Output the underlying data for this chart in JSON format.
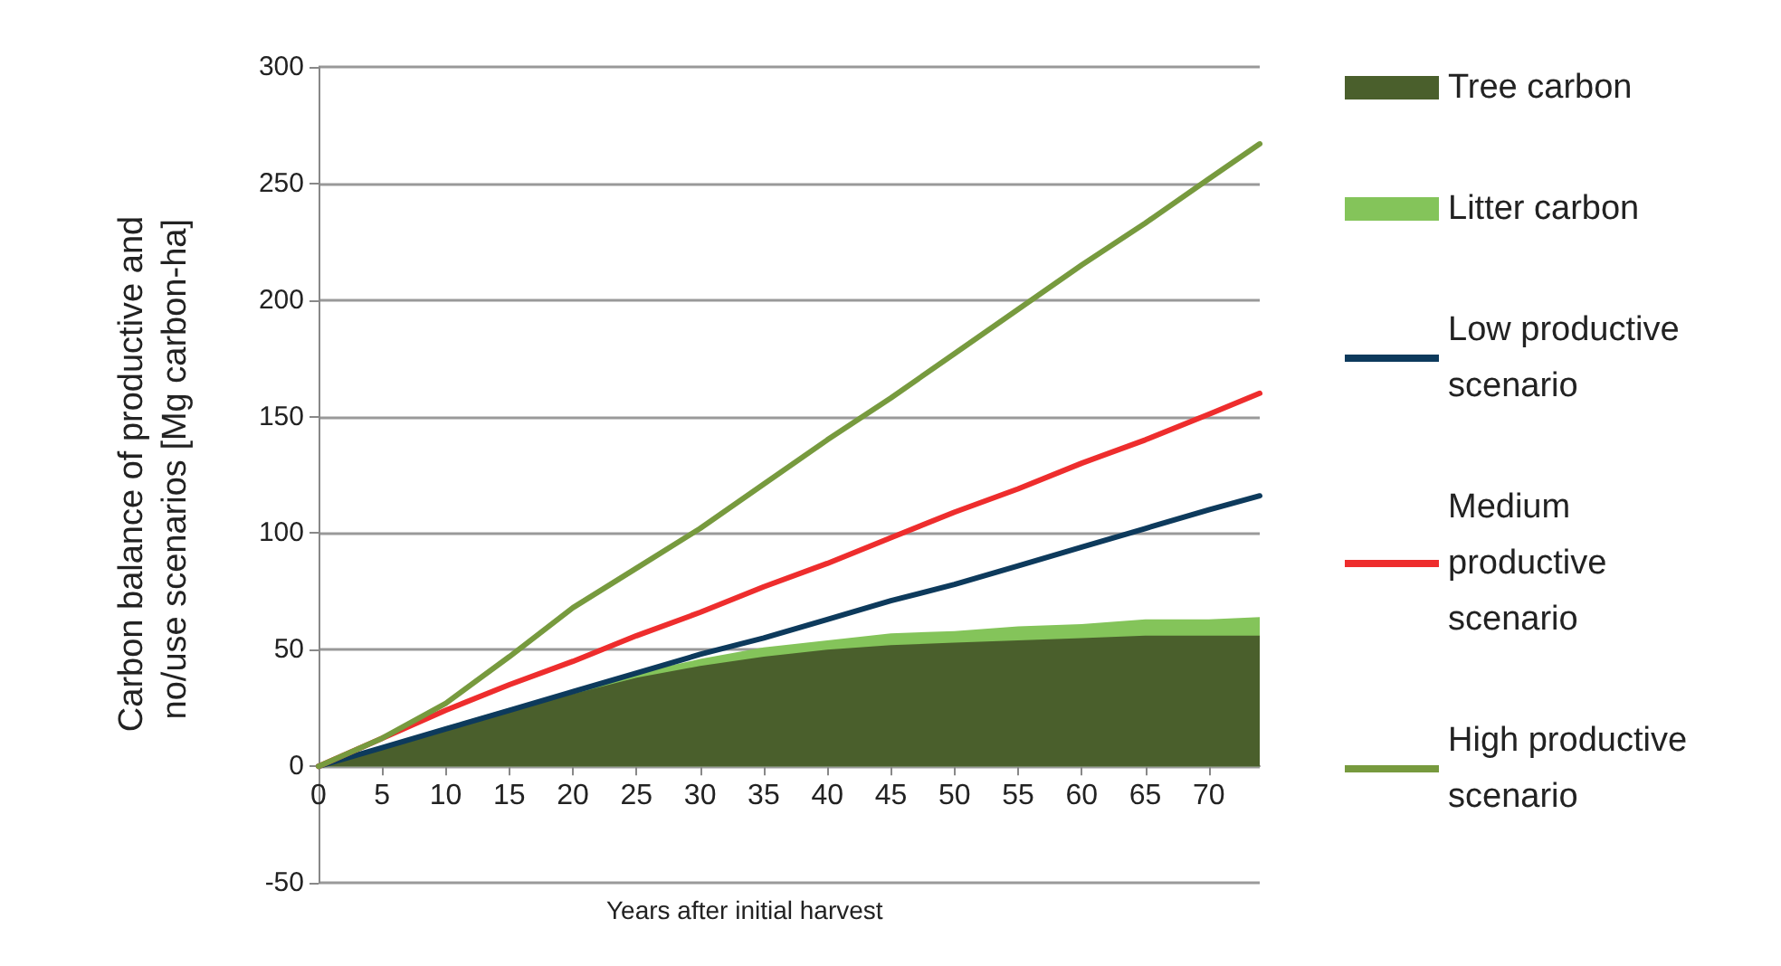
{
  "chart_data": {
    "type": "line",
    "xlabel": "Years after initial harvest",
    "ylabel": "Carbon balance of productive and no/use scenarios [Mg carbon-ha]",
    "x": [
      0,
      5,
      10,
      15,
      20,
      25,
      30,
      35,
      40,
      45,
      50,
      55,
      60,
      65,
      70,
      74
    ],
    "series": [
      {
        "name": "Tree carbon",
        "type": "area",
        "color": "#4a5f2c",
        "values": [
          0,
          8,
          16,
          24,
          31,
          38,
          43,
          47,
          50,
          52,
          53,
          54,
          55,
          56,
          56,
          56
        ]
      },
      {
        "name": "Litter carbon",
        "type": "area",
        "color": "#84c45a",
        "values": [
          0,
          0,
          1,
          1,
          1,
          2,
          3,
          4,
          4,
          5,
          5,
          6,
          6,
          7,
          7,
          8
        ]
      },
      {
        "name": "Low productive scenario",
        "color": "#0d3a5c",
        "values": [
          0,
          8,
          16,
          24,
          32,
          40,
          48,
          55,
          63,
          71,
          78,
          86,
          94,
          102,
          110,
          116
        ]
      },
      {
        "name": "Medium productive scenario",
        "color": "#ee2d2d",
        "values": [
          0,
          12,
          24,
          35,
          45,
          56,
          66,
          77,
          87,
          98,
          109,
          119,
          130,
          140,
          151,
          160
        ]
      },
      {
        "name": "High productive scenario",
        "color": "#779a3e",
        "values": [
          0,
          12,
          27,
          47,
          68,
          85,
          102,
          121,
          140,
          158,
          177,
          196,
          215,
          233,
          252,
          267
        ]
      }
    ],
    "stacked": true,
    "xlim": [
      0,
      74
    ],
    "xticks": [
      0,
      5,
      10,
      15,
      20,
      25,
      30,
      35,
      40,
      45,
      50,
      55,
      60,
      65,
      70
    ],
    "ylim": [
      -50,
      300
    ],
    "yticks": [
      -50,
      0,
      50,
      100,
      150,
      200,
      250,
      300
    ],
    "grid": "y",
    "legend": "right",
    "marker": "none",
    "line_style": "solid"
  }
}
